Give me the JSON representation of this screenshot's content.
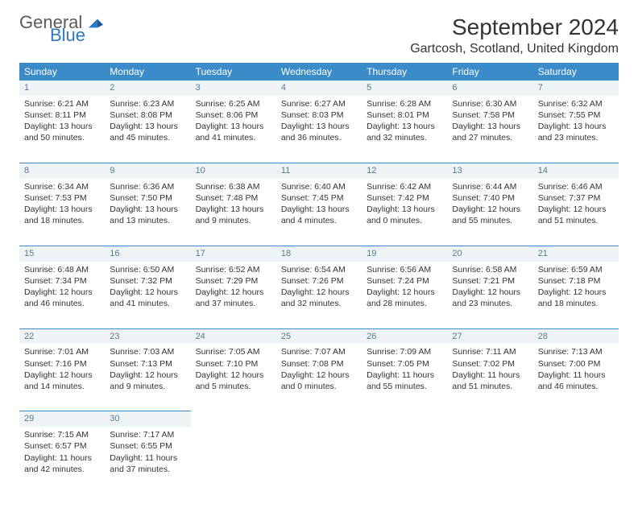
{
  "logo": {
    "text1": "General",
    "text2": "Blue"
  },
  "title": "September 2024",
  "location": "Gartcosh, Scotland, United Kingdom",
  "colors": {
    "header_bg": "#3b8bc9",
    "header_text": "#ffffff",
    "daynum_bg": "#eef3f6",
    "daynum_text": "#5a7a90",
    "border": "#3b8bc9",
    "body_text": "#333333",
    "logo_gray": "#5a5a5a",
    "logo_blue": "#2b78c4"
  },
  "typography": {
    "title_fontsize": 28,
    "location_fontsize": 16,
    "header_fontsize": 12,
    "cell_fontsize": 10.5,
    "daynum_fontsize": 11
  },
  "weekdays": [
    "Sunday",
    "Monday",
    "Tuesday",
    "Wednesday",
    "Thursday",
    "Friday",
    "Saturday"
  ],
  "weeks": [
    [
      {
        "n": "1",
        "sunrise": "Sunrise: 6:21 AM",
        "sunset": "Sunset: 8:11 PM",
        "day1": "Daylight: 13 hours",
        "day2": "and 50 minutes."
      },
      {
        "n": "2",
        "sunrise": "Sunrise: 6:23 AM",
        "sunset": "Sunset: 8:08 PM",
        "day1": "Daylight: 13 hours",
        "day2": "and 45 minutes."
      },
      {
        "n": "3",
        "sunrise": "Sunrise: 6:25 AM",
        "sunset": "Sunset: 8:06 PM",
        "day1": "Daylight: 13 hours",
        "day2": "and 41 minutes."
      },
      {
        "n": "4",
        "sunrise": "Sunrise: 6:27 AM",
        "sunset": "Sunset: 8:03 PM",
        "day1": "Daylight: 13 hours",
        "day2": "and 36 minutes."
      },
      {
        "n": "5",
        "sunrise": "Sunrise: 6:28 AM",
        "sunset": "Sunset: 8:01 PM",
        "day1": "Daylight: 13 hours",
        "day2": "and 32 minutes."
      },
      {
        "n": "6",
        "sunrise": "Sunrise: 6:30 AM",
        "sunset": "Sunset: 7:58 PM",
        "day1": "Daylight: 13 hours",
        "day2": "and 27 minutes."
      },
      {
        "n": "7",
        "sunrise": "Sunrise: 6:32 AM",
        "sunset": "Sunset: 7:55 PM",
        "day1": "Daylight: 13 hours",
        "day2": "and 23 minutes."
      }
    ],
    [
      {
        "n": "8",
        "sunrise": "Sunrise: 6:34 AM",
        "sunset": "Sunset: 7:53 PM",
        "day1": "Daylight: 13 hours",
        "day2": "and 18 minutes."
      },
      {
        "n": "9",
        "sunrise": "Sunrise: 6:36 AM",
        "sunset": "Sunset: 7:50 PM",
        "day1": "Daylight: 13 hours",
        "day2": "and 13 minutes."
      },
      {
        "n": "10",
        "sunrise": "Sunrise: 6:38 AM",
        "sunset": "Sunset: 7:48 PM",
        "day1": "Daylight: 13 hours",
        "day2": "and 9 minutes."
      },
      {
        "n": "11",
        "sunrise": "Sunrise: 6:40 AM",
        "sunset": "Sunset: 7:45 PM",
        "day1": "Daylight: 13 hours",
        "day2": "and 4 minutes."
      },
      {
        "n": "12",
        "sunrise": "Sunrise: 6:42 AM",
        "sunset": "Sunset: 7:42 PM",
        "day1": "Daylight: 13 hours",
        "day2": "and 0 minutes."
      },
      {
        "n": "13",
        "sunrise": "Sunrise: 6:44 AM",
        "sunset": "Sunset: 7:40 PM",
        "day1": "Daylight: 12 hours",
        "day2": "and 55 minutes."
      },
      {
        "n": "14",
        "sunrise": "Sunrise: 6:46 AM",
        "sunset": "Sunset: 7:37 PM",
        "day1": "Daylight: 12 hours",
        "day2": "and 51 minutes."
      }
    ],
    [
      {
        "n": "15",
        "sunrise": "Sunrise: 6:48 AM",
        "sunset": "Sunset: 7:34 PM",
        "day1": "Daylight: 12 hours",
        "day2": "and 46 minutes."
      },
      {
        "n": "16",
        "sunrise": "Sunrise: 6:50 AM",
        "sunset": "Sunset: 7:32 PM",
        "day1": "Daylight: 12 hours",
        "day2": "and 41 minutes."
      },
      {
        "n": "17",
        "sunrise": "Sunrise: 6:52 AM",
        "sunset": "Sunset: 7:29 PM",
        "day1": "Daylight: 12 hours",
        "day2": "and 37 minutes."
      },
      {
        "n": "18",
        "sunrise": "Sunrise: 6:54 AM",
        "sunset": "Sunset: 7:26 PM",
        "day1": "Daylight: 12 hours",
        "day2": "and 32 minutes."
      },
      {
        "n": "19",
        "sunrise": "Sunrise: 6:56 AM",
        "sunset": "Sunset: 7:24 PM",
        "day1": "Daylight: 12 hours",
        "day2": "and 28 minutes."
      },
      {
        "n": "20",
        "sunrise": "Sunrise: 6:58 AM",
        "sunset": "Sunset: 7:21 PM",
        "day1": "Daylight: 12 hours",
        "day2": "and 23 minutes."
      },
      {
        "n": "21",
        "sunrise": "Sunrise: 6:59 AM",
        "sunset": "Sunset: 7:18 PM",
        "day1": "Daylight: 12 hours",
        "day2": "and 18 minutes."
      }
    ],
    [
      {
        "n": "22",
        "sunrise": "Sunrise: 7:01 AM",
        "sunset": "Sunset: 7:16 PM",
        "day1": "Daylight: 12 hours",
        "day2": "and 14 minutes."
      },
      {
        "n": "23",
        "sunrise": "Sunrise: 7:03 AM",
        "sunset": "Sunset: 7:13 PM",
        "day1": "Daylight: 12 hours",
        "day2": "and 9 minutes."
      },
      {
        "n": "24",
        "sunrise": "Sunrise: 7:05 AM",
        "sunset": "Sunset: 7:10 PM",
        "day1": "Daylight: 12 hours",
        "day2": "and 5 minutes."
      },
      {
        "n": "25",
        "sunrise": "Sunrise: 7:07 AM",
        "sunset": "Sunset: 7:08 PM",
        "day1": "Daylight: 12 hours",
        "day2": "and 0 minutes."
      },
      {
        "n": "26",
        "sunrise": "Sunrise: 7:09 AM",
        "sunset": "Sunset: 7:05 PM",
        "day1": "Daylight: 11 hours",
        "day2": "and 55 minutes."
      },
      {
        "n": "27",
        "sunrise": "Sunrise: 7:11 AM",
        "sunset": "Sunset: 7:02 PM",
        "day1": "Daylight: 11 hours",
        "day2": "and 51 minutes."
      },
      {
        "n": "28",
        "sunrise": "Sunrise: 7:13 AM",
        "sunset": "Sunset: 7:00 PM",
        "day1": "Daylight: 11 hours",
        "day2": "and 46 minutes."
      }
    ],
    [
      {
        "n": "29",
        "sunrise": "Sunrise: 7:15 AM",
        "sunset": "Sunset: 6:57 PM",
        "day1": "Daylight: 11 hours",
        "day2": "and 42 minutes."
      },
      {
        "n": "30",
        "sunrise": "Sunrise: 7:17 AM",
        "sunset": "Sunset: 6:55 PM",
        "day1": "Daylight: 11 hours",
        "day2": "and 37 minutes."
      },
      null,
      null,
      null,
      null,
      null
    ]
  ]
}
